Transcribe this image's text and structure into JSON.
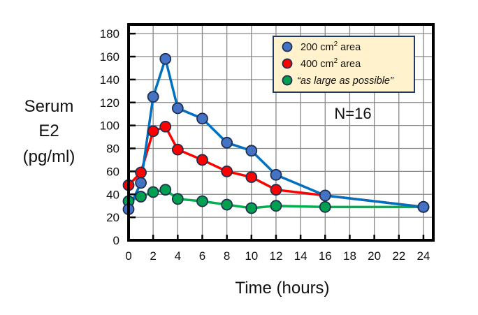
{
  "chart_data": {
    "type": "line",
    "title": "",
    "xlabel": "Time (hours)",
    "ylabel_lines": [
      "Serum",
      "E2",
      "(pg/ml)"
    ],
    "xlim": [
      0,
      24.8
    ],
    "ylim": [
      0,
      188
    ],
    "xticks": [
      0,
      2,
      4,
      6,
      8,
      10,
      12,
      14,
      16,
      18,
      20,
      22,
      24
    ],
    "yticks": [
      0,
      20,
      40,
      60,
      80,
      100,
      120,
      140,
      160,
      180
    ],
    "grid": true,
    "legend_position": "top-right",
    "annotation": "N=16",
    "series": [
      {
        "name": "200 cm² area",
        "label_main": "200 cm",
        "label_sup": "2",
        "label_tail": " area",
        "italic": false,
        "color": "#4472c4",
        "line_color": "#0070c0",
        "x": [
          0,
          1,
          2,
          3,
          4,
          6,
          8,
          10,
          12,
          16,
          24
        ],
        "y": [
          27,
          50,
          125,
          158,
          115,
          106,
          85,
          78,
          57,
          39,
          29
        ]
      },
      {
        "name": "400 cm² area",
        "label_main": "400 cm",
        "label_sup": "2",
        "label_tail": " area",
        "italic": false,
        "color": "#ff0000",
        "line_color": "#ff0000",
        "x": [
          0,
          1,
          2,
          3,
          4,
          6,
          8,
          10,
          12,
          24
        ],
        "y": [
          48,
          59,
          95,
          99,
          79,
          70,
          60,
          55,
          44,
          29
        ]
      },
      {
        "name": "“as large as possible”",
        "label_main": "“as large as possible”",
        "label_sup": "",
        "label_tail": "",
        "italic": true,
        "color": "#00a050",
        "line_color": "#00b050",
        "x": [
          0,
          1,
          2,
          3,
          4,
          6,
          8,
          10,
          12,
          16,
          24
        ],
        "y": [
          34,
          38,
          42,
          44,
          36,
          34,
          31,
          28,
          30,
          29,
          29
        ]
      }
    ]
  }
}
